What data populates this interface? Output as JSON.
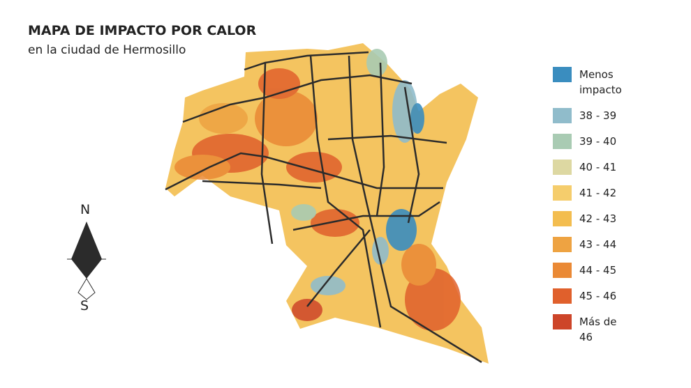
{
  "header": {
    "title": "MAPA DE IMPACTO POR CALOR",
    "subtitle": "en la ciudad de Hermosillo"
  },
  "compass": {
    "north": "N",
    "south": "S"
  },
  "legend": {
    "items": [
      {
        "label": "Menos impacto",
        "color": "#3a8dbf"
      },
      {
        "label": "38 - 39",
        "color": "#90bccb"
      },
      {
        "label": "39 - 40",
        "color": "#a9cbb3"
      },
      {
        "label": "40 - 41",
        "color": "#ddd8a2"
      },
      {
        "label": "41 - 42",
        "color": "#f5cd6c"
      },
      {
        "label": "42 - 43",
        "color": "#f3bd4f"
      },
      {
        "label": "43 - 44",
        "color": "#eea342"
      },
      {
        "label": "44 - 45",
        "color": "#ea8935"
      },
      {
        "label": "45 - 46",
        "color": "#e0602c"
      },
      {
        "label": "Más de 46",
        "color": "#cd4529"
      }
    ]
  }
}
